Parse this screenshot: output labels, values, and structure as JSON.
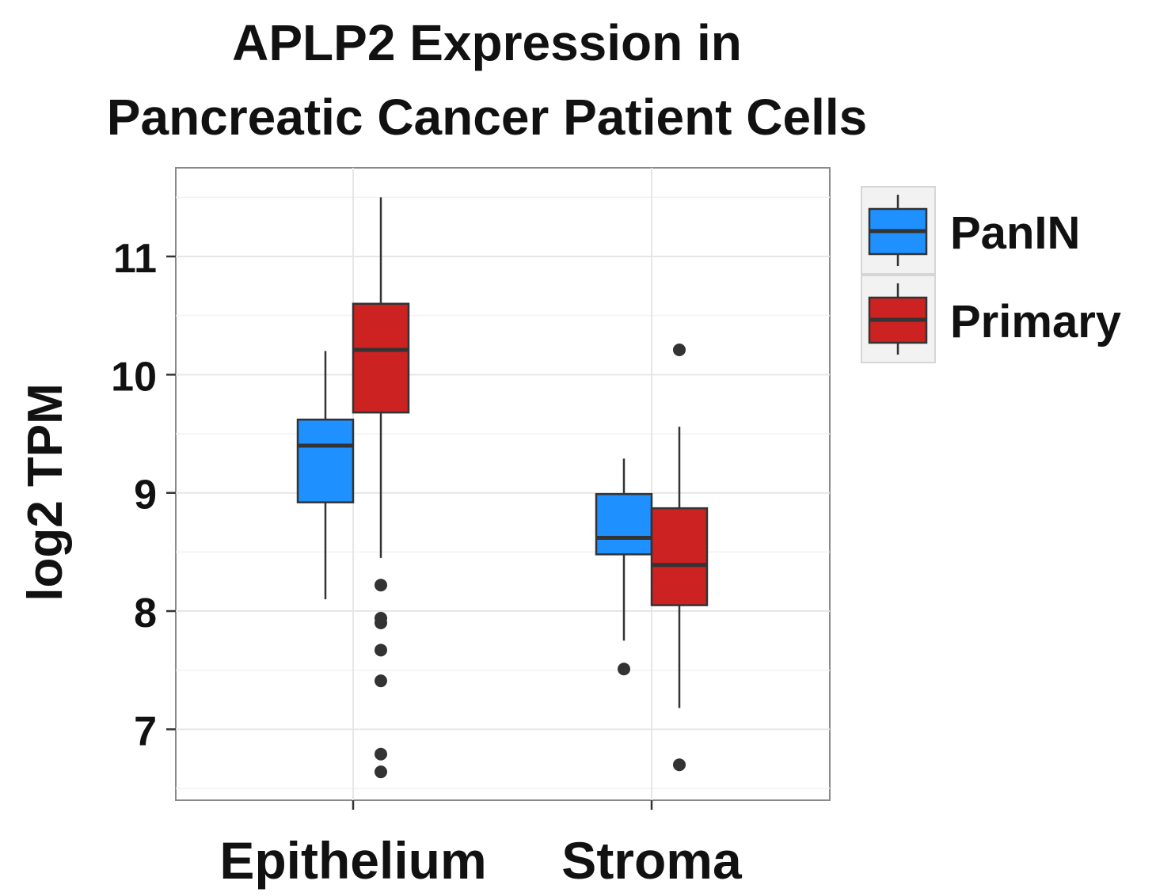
{
  "chart_data": {
    "type": "box",
    "title_lines": [
      "APLP2 Expression in",
      "Pancreatic Cancer Patient Cells"
    ],
    "xlabel": "",
    "ylabel": "log2 TPM",
    "ylim": [
      6.4,
      11.75
    ],
    "yticks": [
      7,
      8,
      9,
      10,
      11
    ],
    "grid": true,
    "legend_position": "right",
    "categories": [
      "Epithelium",
      "Stroma"
    ],
    "series": [
      {
        "name": "PanIN",
        "color": "#1e90ff",
        "boxes": [
          {
            "category": "Epithelium",
            "whisker_low": 8.1,
            "q1": 8.92,
            "median": 9.4,
            "q3": 9.62,
            "whisker_high": 10.2,
            "outliers": []
          },
          {
            "category": "Stroma",
            "whisker_low": 7.75,
            "q1": 8.48,
            "median": 8.62,
            "q3": 8.99,
            "whisker_high": 9.29,
            "outliers": [
              7.51
            ]
          }
        ]
      },
      {
        "name": "Primary",
        "color": "#cc2222",
        "boxes": [
          {
            "category": "Epithelium",
            "whisker_low": 8.45,
            "q1": 9.68,
            "median": 10.21,
            "q3": 10.6,
            "whisker_high": 11.5,
            "outliers": [
              8.22,
              7.94,
              7.9,
              7.67,
              7.41,
              6.79,
              6.64
            ]
          },
          {
            "category": "Stroma",
            "whisker_low": 7.18,
            "q1": 8.05,
            "median": 8.39,
            "q3": 8.87,
            "whisker_high": 9.56,
            "outliers": [
              10.21,
              6.7
            ]
          }
        ]
      }
    ]
  }
}
